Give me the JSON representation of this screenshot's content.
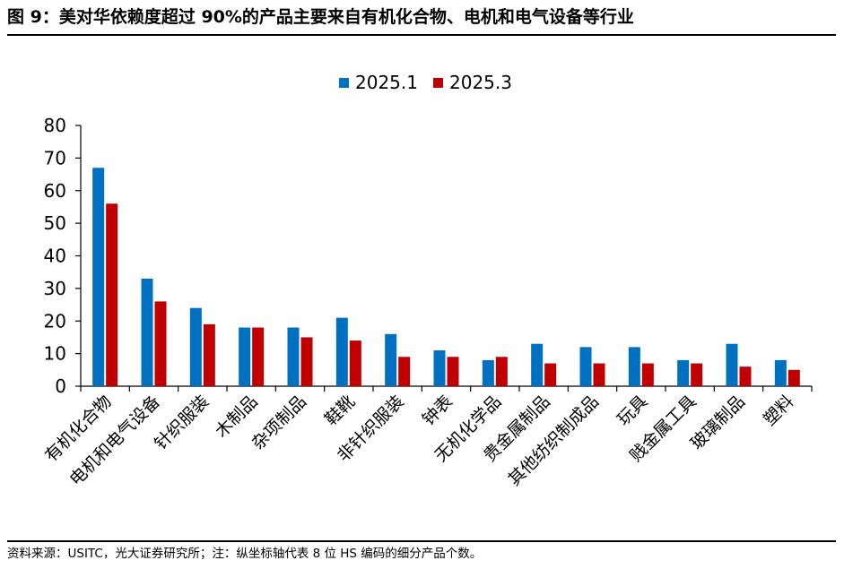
{
  "header": {
    "title": "图 9：美对华依赖度超过 90%的产品主要来自有机化合物、电机和电气设备等行业"
  },
  "footer": {
    "source": "资料来源：USITC，光大证券研究所；注：纵坐标轴代表 8 位 HS 编码的细分产品个数。"
  },
  "colors": {
    "series_2025_1": "#0070C0",
    "series_2025_3": "#C00000"
  },
  "chart_data": {
    "type": "bar",
    "title": "",
    "xlabel": "",
    "ylabel": "",
    "ylim": [
      0,
      80
    ],
    "yticks": [
      0,
      10,
      20,
      30,
      40,
      50,
      60,
      70,
      80
    ],
    "grid": false,
    "legend_position": "top-center",
    "categories": [
      "有机化合物",
      "电机和电气设备",
      "针织服装",
      "木制品",
      "杂项制品",
      "鞋靴",
      "非针织服装",
      "钟表",
      "无机化学品",
      "贵金属制品",
      "其他纺织制成品",
      "玩具",
      "贱金属工具",
      "玻璃制品",
      "塑料"
    ],
    "series": [
      {
        "name": "2025.1",
        "values": [
          67,
          33,
          24,
          18,
          18,
          21,
          16,
          11,
          8,
          13,
          12,
          12,
          8,
          13,
          8
        ]
      },
      {
        "name": "2025.3",
        "values": [
          56,
          26,
          19,
          18,
          15,
          14,
          9,
          9,
          9,
          7,
          7,
          7,
          7,
          6,
          5
        ]
      }
    ]
  }
}
